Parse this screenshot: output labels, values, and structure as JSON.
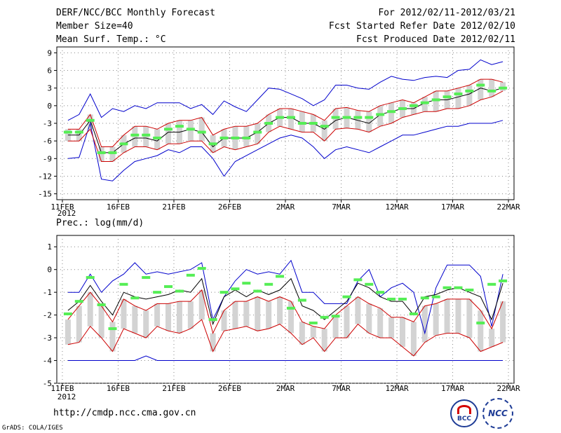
{
  "header": {
    "title": "DERF/NCC/BCC Monthly Forecast",
    "member_size": "Member Size=40",
    "variable": "Mean Surf. Temp.: °C",
    "period": "For 2012/02/11-2012/03/21",
    "refer_date": "Fcst Started Refer Date 2012/02/10",
    "produced_date": "Fcst Produced Date 2012/02/11"
  },
  "footer": {
    "url": "http://cmdp.ncc.cma.gov.cn",
    "credit": "GrADS: COLA/IGES",
    "logo_bcc": "BCC",
    "logo_ncc": "NCC"
  },
  "colors": {
    "envelope": "#0000cc",
    "quartile": "#cc0000",
    "median": "#000000",
    "box": "#d3d3d3",
    "marker": "#55ee55"
  },
  "chart_data": [
    {
      "type": "line",
      "title": "Mean Surf. Temp.: °C",
      "x_tick_labels": [
        "11FEB",
        "16FEB",
        "21FEB",
        "26FEB",
        "2MAR",
        "7MAR",
        "12MAR",
        "17MAR",
        "22MAR"
      ],
      "x_sublabel": "2012",
      "ylim": [
        -16,
        10
      ],
      "y_ticks": [
        -15,
        -12,
        -9,
        -6,
        -3,
        0,
        3,
        6,
        9
      ],
      "days": 40,
      "series": [
        {
          "name": "max",
          "values": [
            -9,
            -8.8,
            -3,
            -12.5,
            -12.8,
            -11,
            -9.5,
            -9,
            -8.5,
            -7.5,
            -8,
            -7,
            -7,
            -9,
            -12,
            -9.5,
            -8.5,
            -7.5,
            -6.5,
            -5.5,
            -5,
            -5.5,
            -7,
            -9,
            -7.5,
            -7,
            -7.5,
            -8,
            -7,
            -6,
            -5,
            -5,
            -4.5,
            -4,
            -3.5,
            -3.5,
            -3,
            -3,
            -3,
            -2.5
          ]
        },
        {
          "name": "min",
          "values": [
            -2.5,
            -1.5,
            2,
            -2,
            -0.5,
            -1,
            0,
            -0.5,
            0.5,
            0.5,
            0.5,
            -0.5,
            0.2,
            -1.5,
            0.8,
            -0.2,
            -1,
            1,
            3,
            2.8,
            2,
            1.2,
            0,
            1,
            3.5,
            3.5,
            3,
            2.8,
            4,
            5,
            4.5,
            4.3,
            4.8,
            5,
            4.8,
            6,
            6.2,
            7.8,
            7,
            7.5
          ]
        },
        {
          "name": "q-lower",
          "values": [
            -6,
            -6,
            -4,
            -9.5,
            -9.5,
            -8,
            -7,
            -7,
            -7.5,
            -6.5,
            -6.5,
            -6,
            -6,
            -8,
            -7,
            -7.5,
            -7,
            -6.5,
            -4.5,
            -3.5,
            -4,
            -4.5,
            -4.5,
            -6,
            -4,
            -3.8,
            -4,
            -4.5,
            -3.5,
            -3,
            -2,
            -1.5,
            -1,
            -1,
            -0.5,
            -0.5,
            0,
            1,
            1.5,
            2.5
          ]
        },
        {
          "name": "q-upper",
          "values": [
            -4,
            -4,
            -1.5,
            -7,
            -7,
            -5,
            -3.5,
            -3.5,
            -4,
            -3,
            -2.5,
            -2.5,
            -2,
            -5,
            -4,
            -3.5,
            -3.5,
            -3,
            -1.5,
            -0.5,
            -0.5,
            -1,
            -1.5,
            -2.5,
            -0.5,
            -0.3,
            -0.8,
            -1,
            0,
            0.5,
            1,
            0.5,
            1.5,
            2.5,
            2.5,
            3,
            3.5,
            4.5,
            4.5,
            4
          ]
        },
        {
          "name": "median",
          "values": [
            -5,
            -5,
            -2.5,
            -8,
            -8,
            -6.5,
            -5.5,
            -5.5,
            -6,
            -4.5,
            -4.5,
            -4,
            -4.5,
            -7,
            -5.5,
            -5.5,
            -5.5,
            -4.5,
            -3,
            -2,
            -2,
            -3,
            -3,
            -4,
            -2.5,
            -2,
            -2.5,
            -3,
            -1.5,
            -1,
            -0.5,
            -0.5,
            0.5,
            1,
            1,
            1.5,
            2,
            3,
            2.5,
            3
          ]
        },
        {
          "name": "marker",
          "values": [
            -4.5,
            -4.5,
            -2.5,
            -8,
            -8,
            -6.5,
            -5,
            -5,
            -5.5,
            -4,
            -3.5,
            -4,
            -4.5,
            -6.5,
            -5.5,
            -5.5,
            -5.5,
            -4.5,
            -3,
            -2,
            -2,
            -3,
            -3,
            -3.5,
            -2,
            -2,
            -2,
            -2,
            -1.5,
            -1,
            -0.5,
            0,
            0.5,
            1,
            1.5,
            2,
            2.5,
            3.5,
            2.5,
            3
          ]
        }
      ]
    },
    {
      "type": "line",
      "title": "Prec.: log(mm/d)",
      "x_tick_labels": [
        "11FEB",
        "16FEB",
        "21FEB",
        "26FEB",
        "2MAR",
        "7MAR",
        "12MAR",
        "17MAR",
        "22MAR"
      ],
      "x_sublabel": "2012",
      "ylim": [
        -5,
        1.5
      ],
      "y_ticks": [
        -5,
        -4,
        -3,
        -2,
        -1,
        0,
        1
      ],
      "days": 40,
      "series": [
        {
          "name": "max",
          "values": [
            -4,
            -4,
            -4,
            -4,
            -4,
            -4,
            -4,
            -3.8,
            -4,
            -4,
            -4,
            -4,
            -4,
            -4,
            -4,
            -4,
            -4,
            -4,
            -4,
            -4,
            -4,
            -4,
            -4,
            -4,
            -4,
            -4,
            -4,
            -4,
            -4,
            -4,
            -4,
            -4,
            -4,
            -4,
            -4,
            -4,
            -4,
            -4,
            -4,
            -4
          ]
        },
        {
          "name": "min",
          "values": [
            -1,
            -1,
            -0.2,
            -1,
            -0.5,
            -0.2,
            0.3,
            -0.2,
            -0.1,
            -0.2,
            -0.1,
            0,
            0.3,
            -2.2,
            -1.2,
            -0.5,
            0,
            -0.2,
            -0.1,
            -0.2,
            0.4,
            -1,
            -1,
            -1.5,
            -1.5,
            -1.5,
            -0.5,
            0,
            -1.2,
            -0.8,
            -0.6,
            -1,
            -2.8,
            -0.8,
            0.2,
            0.2,
            0.2,
            -0.3,
            -2.5,
            -0.2
          ]
        },
        {
          "name": "q-lower",
          "values": [
            -3.3,
            -3.2,
            -2.5,
            -3,
            -3.6,
            -2.6,
            -2.8,
            -3,
            -2.5,
            -2.7,
            -2.8,
            -2.6,
            -2.2,
            -3.6,
            -2.7,
            -2.6,
            -2.5,
            -2.7,
            -2.6,
            -2.4,
            -2.8,
            -3.3,
            -3,
            -3.6,
            -3,
            -3,
            -2.4,
            -2.8,
            -3,
            -3,
            -3.4,
            -3.8,
            -3.2,
            -2.9,
            -2.8,
            -2.8,
            -3,
            -3.6,
            -3.4,
            -3.2
          ]
        },
        {
          "name": "q-upper",
          "values": [
            -2.2,
            -1.6,
            -1,
            -1.6,
            -2.3,
            -1.3,
            -1.6,
            -1.8,
            -1.5,
            -1.5,
            -1.4,
            -1.4,
            -0.9,
            -2.8,
            -1.8,
            -1.4,
            -1.4,
            -1.2,
            -1.4,
            -1.2,
            -1.4,
            -2.3,
            -2.5,
            -2.6,
            -2,
            -1.6,
            -1.2,
            -1.5,
            -1.7,
            -2.1,
            -2.1,
            -2.3,
            -1.6,
            -1.5,
            -1.3,
            -1.3,
            -1.3,
            -1.8,
            -2.6,
            -1.4
          ]
        },
        {
          "name": "median",
          "values": [
            -1.8,
            -1.4,
            -0.7,
            -1.4,
            -2,
            -1,
            -1.2,
            -1.3,
            -1.2,
            -1.1,
            -0.9,
            -1,
            -0.4,
            -2.4,
            -1.2,
            -0.9,
            -1.2,
            -0.9,
            -1.1,
            -0.9,
            -0.4,
            -1.6,
            -1.8,
            -2.2,
            -1.8,
            -1.4,
            -0.6,
            -0.8,
            -1.2,
            -1.4,
            -1.4,
            -2,
            -1.2,
            -1.1,
            -0.9,
            -0.8,
            -1,
            -1.2,
            -2.2,
            -0.6
          ]
        },
        {
          "name": "marker",
          "values": [
            -1.95,
            -1.4,
            -0.35,
            -1.55,
            -2.6,
            -0.65,
            -1.25,
            -0.35,
            -1,
            -0.75,
            -0.95,
            -0.25,
            0.05,
            -2.2,
            -1,
            -0.85,
            -0.6,
            -0.95,
            -0.65,
            -0.3,
            -1.7,
            -1.35,
            -2.35,
            -2.1,
            -2.05,
            -1.2,
            -0.45,
            -0.65,
            -1,
            -1.3,
            -1.3,
            -1.95,
            -1.25,
            -1.2,
            -0.8,
            -0.8,
            -0.9,
            -2.35,
            -0.65,
            -0.5
          ]
        }
      ]
    }
  ]
}
